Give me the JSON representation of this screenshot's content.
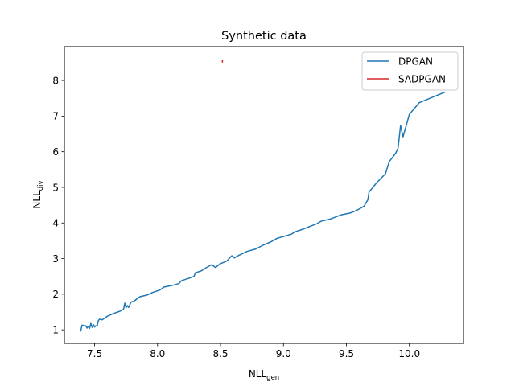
{
  "chart_data": {
    "type": "line",
    "title": "Synthetic data",
    "xlabel": {
      "base": "NLL",
      "sub": "gen"
    },
    "ylabel": {
      "base": "NLL",
      "sub": "div"
    },
    "xlim": [
      7.26,
      10.43
    ],
    "ylim": [
      0.62,
      8.95
    ],
    "x_ticks": [
      7.5,
      8.0,
      8.5,
      9.0,
      9.5,
      10.0
    ],
    "x_tick_labels": [
      "7.5",
      "8.0",
      "8.5",
      "9.0",
      "9.5",
      "10.0"
    ],
    "y_ticks": [
      1,
      2,
      3,
      4,
      5,
      6,
      7,
      8
    ],
    "y_tick_labels": [
      "1",
      "2",
      "3",
      "4",
      "5",
      "6",
      "7",
      "8"
    ],
    "grid": false,
    "legend_position": "top-right",
    "series": [
      {
        "name": "DPGAN",
        "color": "#1f77b4",
        "points": [
          [
            7.39,
            0.97
          ],
          [
            7.4,
            1.13
          ],
          [
            7.43,
            1.11
          ],
          [
            7.44,
            1.05
          ],
          [
            7.45,
            1.1
          ],
          [
            7.46,
            1.04
          ],
          [
            7.47,
            1.18
          ],
          [
            7.48,
            1.07
          ],
          [
            7.49,
            1.15
          ],
          [
            7.5,
            1.08
          ],
          [
            7.51,
            1.12
          ],
          [
            7.52,
            1.1
          ],
          [
            7.53,
            1.26
          ],
          [
            7.54,
            1.3
          ],
          [
            7.56,
            1.28
          ],
          [
            7.6,
            1.38
          ],
          [
            7.66,
            1.47
          ],
          [
            7.7,
            1.52
          ],
          [
            7.73,
            1.58
          ],
          [
            7.74,
            1.75
          ],
          [
            7.75,
            1.62
          ],
          [
            7.76,
            1.68
          ],
          [
            7.77,
            1.63
          ],
          [
            7.79,
            1.78
          ],
          [
            7.81,
            1.8
          ],
          [
            7.86,
            1.93
          ],
          [
            7.92,
            1.98
          ],
          [
            7.96,
            2.05
          ],
          [
            8.02,
            2.12
          ],
          [
            8.05,
            2.2
          ],
          [
            8.12,
            2.25
          ],
          [
            8.17,
            2.3
          ],
          [
            8.19,
            2.38
          ],
          [
            8.25,
            2.45
          ],
          [
            8.29,
            2.5
          ],
          [
            8.3,
            2.6
          ],
          [
            8.35,
            2.66
          ],
          [
            8.38,
            2.73
          ],
          [
            8.43,
            2.83
          ],
          [
            8.46,
            2.75
          ],
          [
            8.5,
            2.86
          ],
          [
            8.55,
            2.93
          ],
          [
            8.59,
            3.08
          ],
          [
            8.61,
            3.02
          ],
          [
            8.65,
            3.1
          ],
          [
            8.71,
            3.2
          ],
          [
            8.78,
            3.27
          ],
          [
            8.84,
            3.38
          ],
          [
            8.9,
            3.47
          ],
          [
            8.95,
            3.57
          ],
          [
            9.0,
            3.62
          ],
          [
            9.06,
            3.68
          ],
          [
            9.09,
            3.75
          ],
          [
            9.15,
            3.82
          ],
          [
            9.2,
            3.89
          ],
          [
            9.26,
            3.97
          ],
          [
            9.3,
            4.05
          ],
          [
            9.38,
            4.12
          ],
          [
            9.46,
            4.23
          ],
          [
            9.53,
            4.28
          ],
          [
            9.58,
            4.35
          ],
          [
            9.64,
            4.47
          ],
          [
            9.67,
            4.65
          ],
          [
            9.68,
            4.87
          ],
          [
            9.74,
            5.13
          ],
          [
            9.81,
            5.38
          ],
          [
            9.84,
            5.72
          ],
          [
            9.89,
            5.95
          ],
          [
            9.91,
            6.1
          ],
          [
            9.93,
            6.73
          ],
          [
            9.95,
            6.42
          ],
          [
            10.0,
            7.05
          ],
          [
            10.08,
            7.38
          ],
          [
            10.28,
            7.67
          ]
        ]
      },
      {
        "name": "SADPGAN",
        "color": "#d62728",
        "points": [
          [
            8.515,
            8.52
          ],
          [
            8.515,
            8.57
          ]
        ]
      }
    ]
  }
}
